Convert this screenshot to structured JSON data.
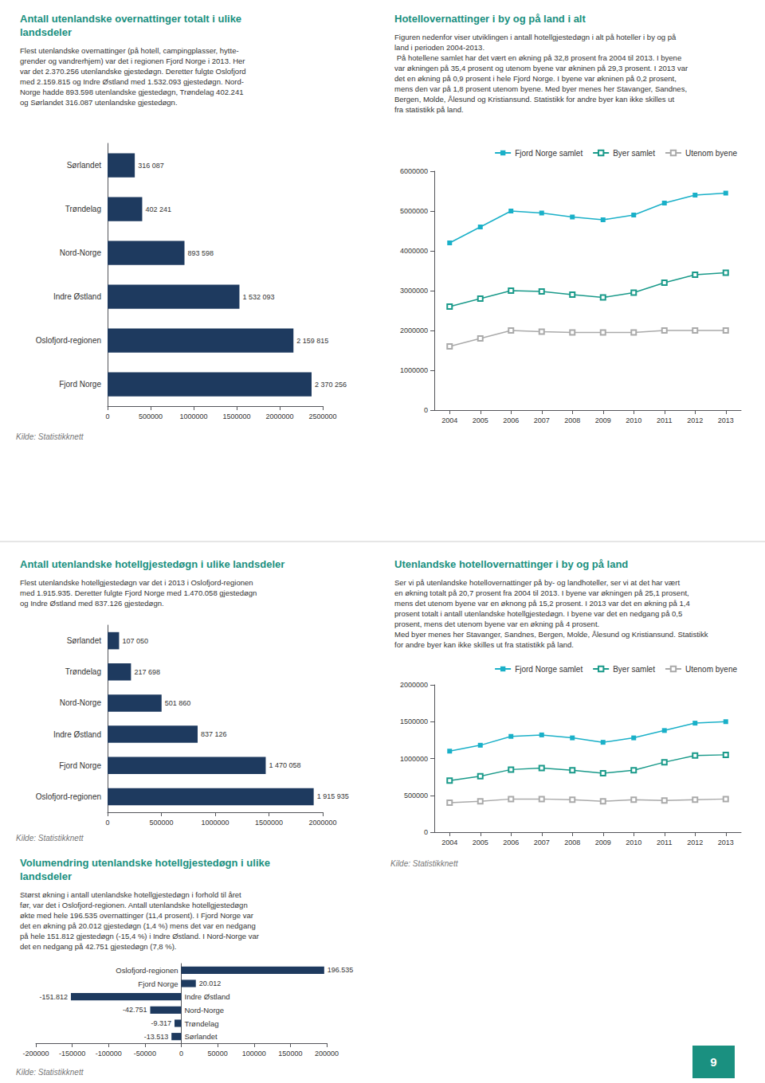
{
  "chart_data": [
    {
      "type": "bar",
      "orientation": "horizontal",
      "title": "Antall utenlandske overnattinger totalt i ulike\nlandsdeler",
      "subtitle": "Flest utenlandske overnattinger (på hotell, campingplasser, hytte-\ngrender og vandrerhjem) var det i regionen Fjord Norge i 2013. Her\nvar det 2.370.256 utenlandske gjestedøgn. Deretter fulgte Oslofjord\nmed 2.159.815 og Indre Østland med 1.532.093 gjestedøgn. Nord-\nNorge hadde 893.598 utenlandske gjestedøgn, Trøndelag 402.241\nog Sørlandet 316.087 utenlandske gjestedøgn.",
      "categories": [
        "Fjord Norge",
        "Oslofjord-regionen",
        "Indre Østland",
        "Nord-Norge",
        "Trøndelag",
        "Sørlandet"
      ],
      "values": [
        2370256,
        2159815,
        1532093,
        893598,
        402241,
        316087
      ],
      "value_labels": [
        "2 370 256",
        "2 159 815",
        "1 532 093",
        "893 598",
        "402 241",
        "316 087"
      ],
      "data_labels": true,
      "color": "#1e3a5f",
      "xlim": [
        0,
        2500000
      ],
      "xticks": [
        0,
        500000,
        1000000,
        1500000,
        2000000,
        2500000
      ],
      "grid": false,
      "annotations": [
        "Kilde: Statistikknett"
      ]
    },
    {
      "type": "line",
      "title": "Hotellovernattinger i by og på land i alt",
      "subtitle": "Figuren nedenfor viser utviklingen i antall hotellgjestedøgn i alt på hoteller i by og på\nland i perioden 2004-2013.\n På hotellene samlet har det vært en økning på 32,8 prosent fra 2004 til 2013. I byene\nvar økningen på 35,4 prosent og utenom byene var økninen på 29,3 prosent. I 2013 var\ndet en økning på 0,9 prosent i hele Fjord Norge. I byene var økninen på 0,2 prosent,\nmens den var på 1,8 prosent utenom byene. Med byer menes her Stavanger, Sandnes,\nBergen, Molde, Ålesund og Kristiansund. Statistikk for andre byer kan ikke skilles ut\nfra statistikk på land.",
      "x": [
        2004,
        2005,
        2006,
        2007,
        2008,
        2009,
        2010,
        2011,
        2012,
        2013
      ],
      "series": [
        {
          "name": "Fjord Norge samlet",
          "color": "#1ab0c8",
          "marker": "square",
          "values": [
            4200000,
            4600000,
            5000000,
            4950000,
            4850000,
            4780000,
            4900000,
            5200000,
            5400000,
            5450000
          ]
        },
        {
          "name": "Byer samlet",
          "color": "#1a9a8a",
          "marker": "open-square",
          "values": [
            2600000,
            2800000,
            3000000,
            2980000,
            2900000,
            2830000,
            2950000,
            3200000,
            3400000,
            3450000
          ]
        },
        {
          "name": "Utenom byene",
          "color": "#aaaaaa",
          "marker": "open-square",
          "values": [
            1600000,
            1800000,
            2000000,
            1970000,
            1950000,
            1950000,
            1950000,
            2000000,
            2000000,
            2000000
          ]
        }
      ],
      "xlim": [
        2003.5,
        2013.5
      ],
      "xticks": [
        2004,
        2005,
        2006,
        2007,
        2008,
        2009,
        2010,
        2011,
        2012,
        2013
      ],
      "ylim": [
        0,
        6000000
      ],
      "yticks": [
        0,
        1000000,
        2000000,
        3000000,
        4000000,
        5000000,
        6000000
      ],
      "legend": "upper right",
      "grid": false
    },
    {
      "type": "bar",
      "orientation": "horizontal",
      "title": "Antall utenlandske hotellgjestedøgn i ulike landsdeler",
      "subtitle": "Flest utenlandske hotellgjestedøgn var det i 2013 i Oslofjord-regionen\nmed 1.915.935. Deretter fulgte Fjord Norge med 1.470.058 gjestedøgn\nog Indre Østland med 837.126 gjestedøgn.",
      "categories": [
        "Oslofjord-regionen",
        "Fjord Norge",
        "Indre Østland",
        "Nord-Norge",
        "Trøndelag",
        "Sørlandet"
      ],
      "values": [
        1915935,
        1470058,
        837126,
        501860,
        217698,
        107050
      ],
      "value_labels": [
        "1 915 935",
        "1 470 058",
        "837 126",
        "501 860",
        "217 698",
        "107 050"
      ],
      "data_labels": true,
      "color": "#1e3a5f",
      "xlim": [
        0,
        2000000
      ],
      "xticks": [
        0,
        500000,
        1000000,
        1500000,
        2000000
      ],
      "grid": false,
      "annotations": [
        "Kilde: Statistikknett"
      ]
    },
    {
      "type": "line",
      "title": "Utenlandske hotellovernattinger i by og på land",
      "subtitle": "Ser vi på utenlandske hotellovernattinger på by- og landhoteller, ser vi at det har vært\nen økning totalt på 20,7 prosent fra 2004 til 2013. I byene var økningen på 25,1 prosent,\nmens det utenom byene var en øknong på 15,2 prosent. I 2013 var det en økning på 1,4\nprosent totalt i antall utenlandske hotellgjestedøgn. I byene var det en nedgang på 0,5\nprosent, mens det utenom byene var en økning på 4 prosent.\nMed byer menes her Stavanger, Sandnes, Bergen, Molde, Ålesund og Kristiansund. Statistikk\nfor andre byer kan ikke skilles ut fra statistikk på land.",
      "x": [
        2004,
        2005,
        2006,
        2007,
        2008,
        2009,
        2010,
        2011,
        2012,
        2013
      ],
      "series": [
        {
          "name": "Fjord Norge samlet",
          "color": "#1ab0c8",
          "marker": "square",
          "values": [
            1100000,
            1180000,
            1300000,
            1320000,
            1280000,
            1220000,
            1280000,
            1380000,
            1480000,
            1500000
          ]
        },
        {
          "name": "Byer samlet",
          "color": "#1a9a8a",
          "marker": "open-square",
          "values": [
            700000,
            760000,
            850000,
            870000,
            840000,
            800000,
            840000,
            950000,
            1040000,
            1050000
          ]
        },
        {
          "name": "Utenom byene",
          "color": "#aaaaaa",
          "marker": "open-square",
          "values": [
            400000,
            420000,
            450000,
            450000,
            440000,
            420000,
            440000,
            430000,
            440000,
            450000
          ]
        }
      ],
      "xlim": [
        2003.5,
        2013.5
      ],
      "xticks": [
        2004,
        2005,
        2006,
        2007,
        2008,
        2009,
        2010,
        2011,
        2012,
        2013
      ],
      "ylim": [
        0,
        2000000
      ],
      "yticks": [
        0,
        500000,
        1000000,
        1500000,
        2000000
      ],
      "legend": "upper right",
      "grid": false,
      "annotations": [
        "Kilde: Statistikknett"
      ]
    },
    {
      "type": "bar",
      "orientation": "horizontal",
      "title": "Volumendring utenlandske hotellgjestedøgn i ulike\nlandsdeler",
      "subtitle": "Størst økning i antall utenlandske hotellgjestedøgn i forhold til året\nfør, var det i Oslofjord-regionen. Antall utenlandske hotellgjestedøgn\nøkte med hele 196.535 overnattinger (11,4 prosent). I Fjord Norge var\ndet en økning på 20.012 gjestedøgn (1,4 %) mens det var en nedgang\npå hele 151.812 gjestedøgn (-15,4 %) i Indre Østland. I Nord-Norge var\ndet en nedgang på 42.751 gjestedøgn (7,8 %).",
      "categories": [
        "Sørlandet",
        "Trøndelag",
        "Nord-Norge",
        "Indre Østland",
        "Fjord Norge",
        "Oslofjord-regionen"
      ],
      "values": [
        -13513,
        -9317,
        -42751,
        -151812,
        20012,
        196535
      ],
      "value_labels": [
        "-13.513",
        "-9.317",
        "-42.751",
        "-151.812",
        "20.012",
        "196.535"
      ],
      "data_labels": true,
      "color": "#1e3a5f",
      "xlim": [
        -200000,
        200000
      ],
      "xticks": [
        -200000,
        -150000,
        -100000,
        -50000,
        0,
        50000,
        100000,
        150000,
        200000
      ],
      "tick_labels": "x",
      "grid": false,
      "annotations": [
        "Kilde: Statistikknett",
        "9"
      ]
    }
  ]
}
